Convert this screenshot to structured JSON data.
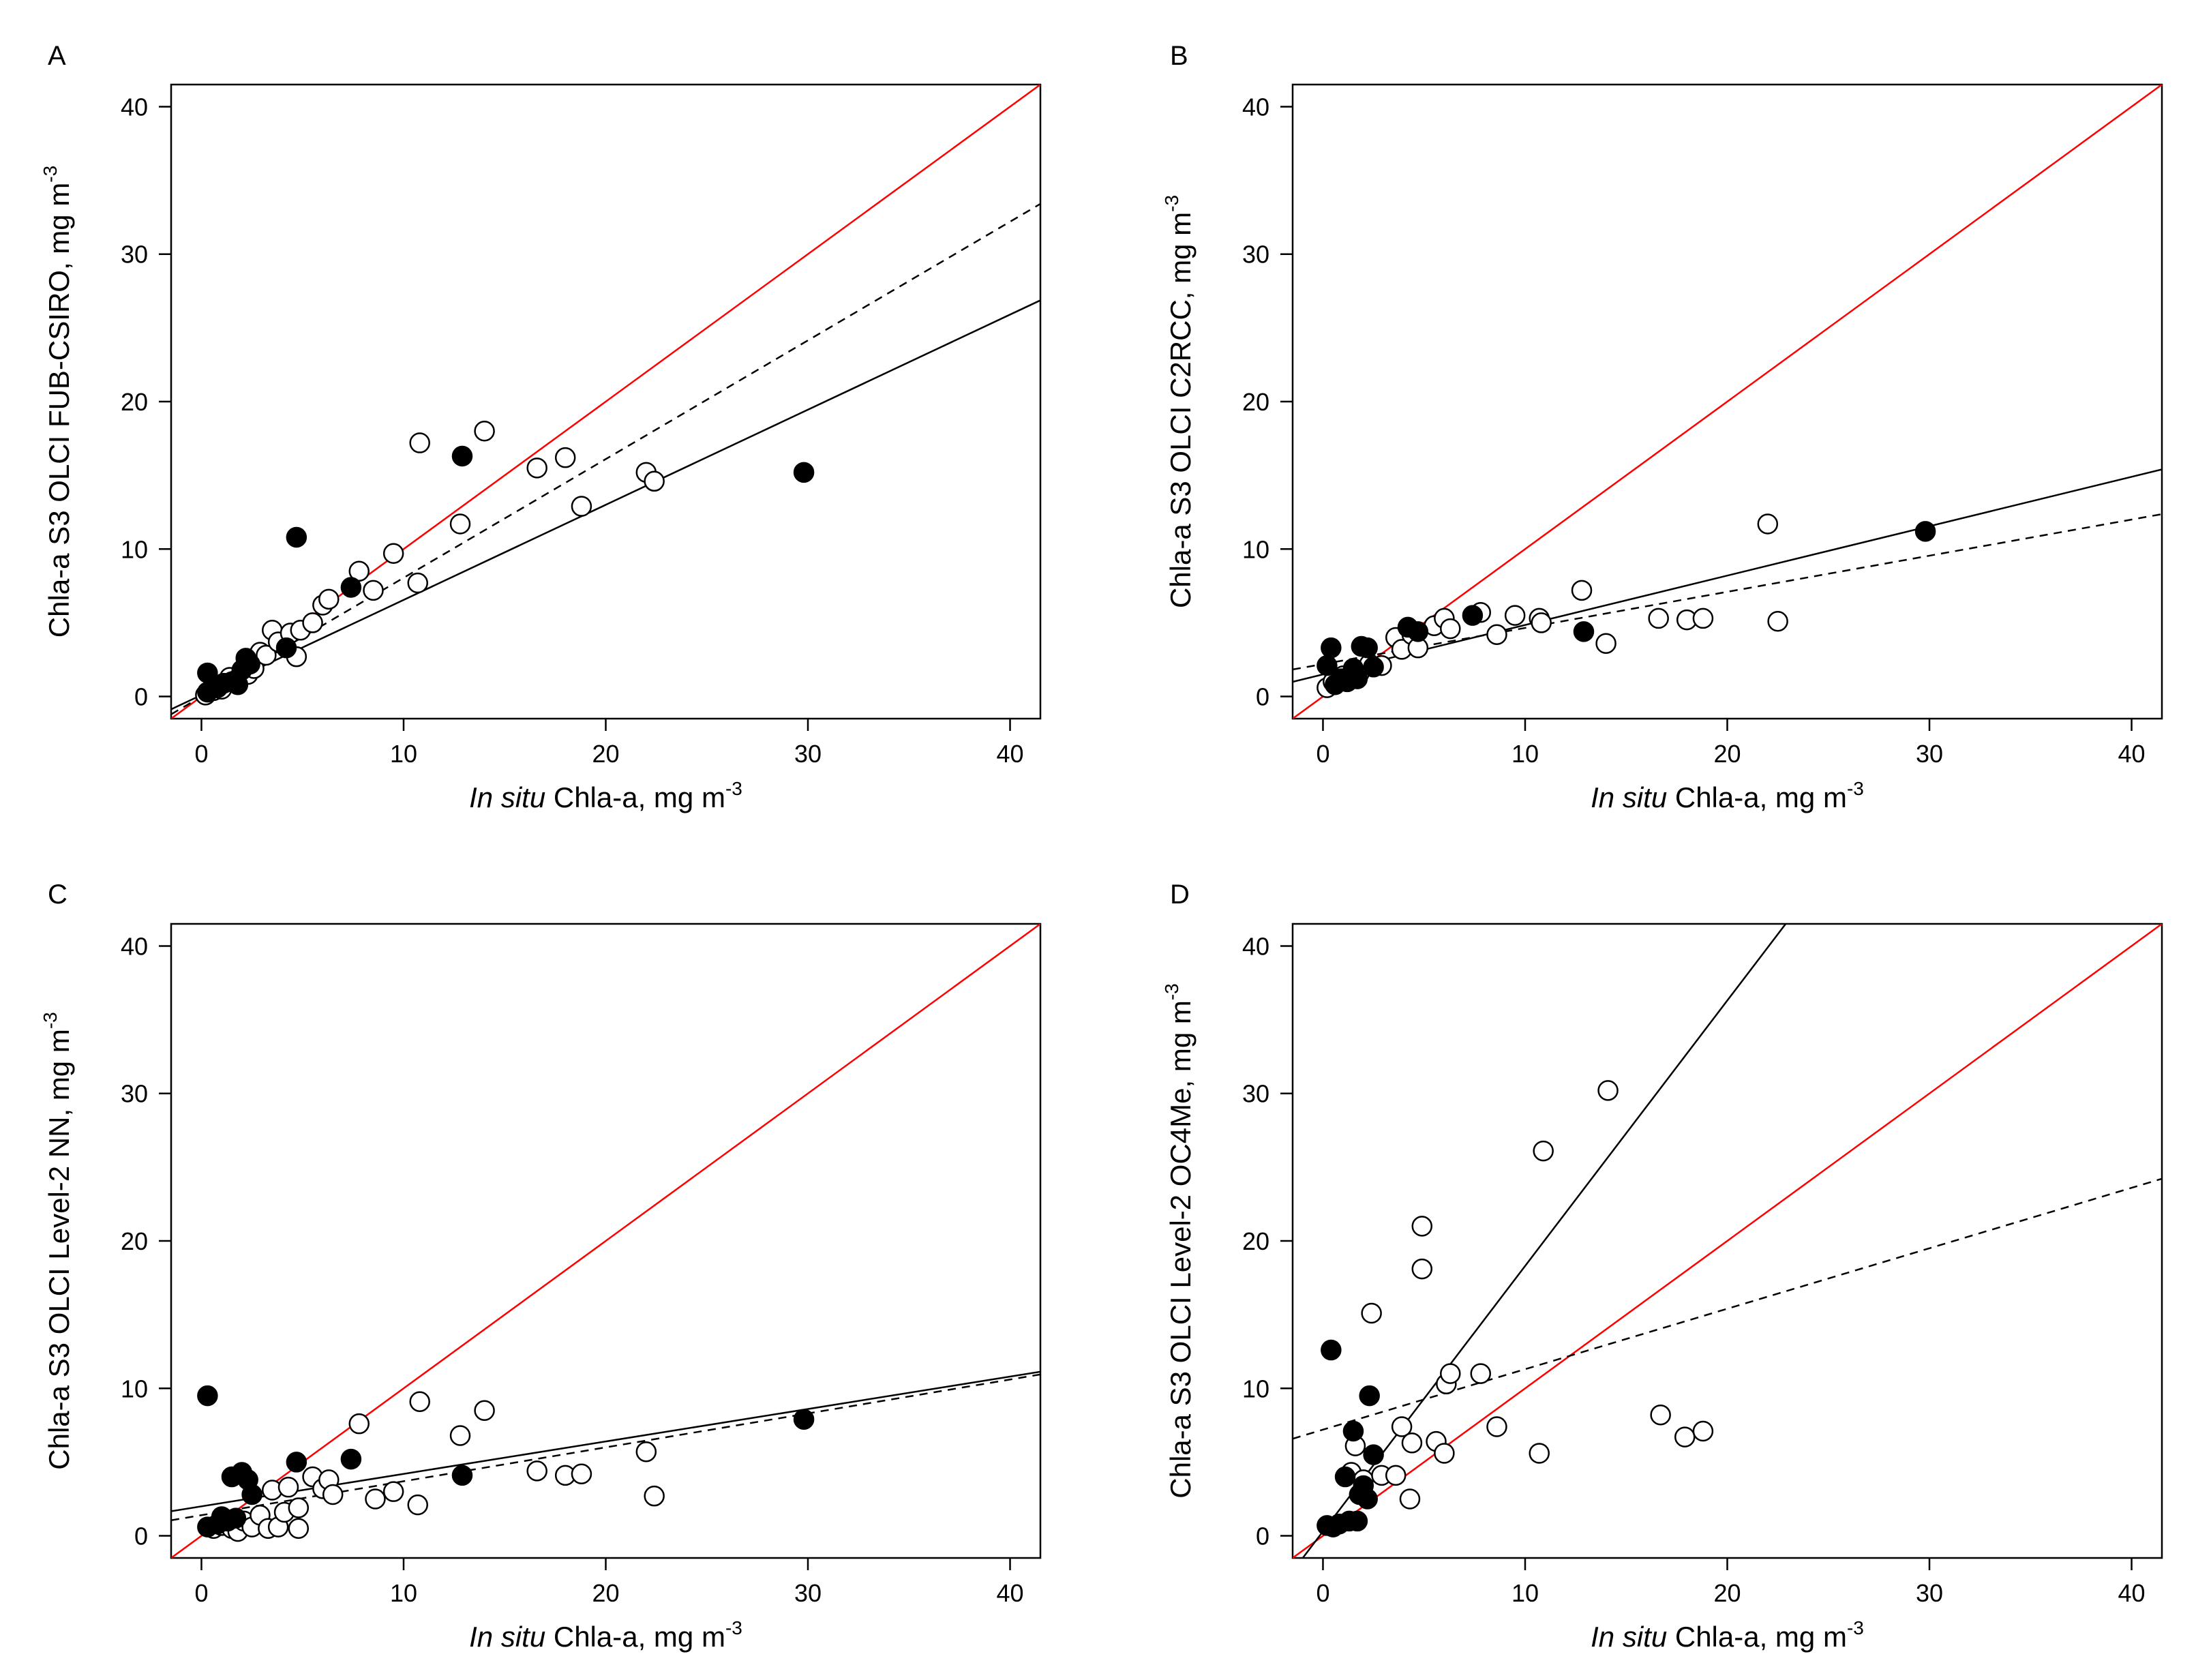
{
  "colors": {
    "identity_line": "#ff0000",
    "fit_line": "#000000",
    "background": "#ffffff"
  },
  "chart_data": [
    {
      "panel_label": "A",
      "type": "scatter",
      "ylabel": "Chla-a S3 OLCI FUB-CSIRO, mg m",
      "ylabel_sup": "-3",
      "xlabel_italic": "In situ",
      "xlabel_rest": " Chla-a, mg m",
      "xlabel_sup": "-3",
      "xlim": [
        -1.5,
        41.5
      ],
      "ylim": [
        -1.5,
        41.5
      ],
      "x_ticks": [
        0,
        10,
        20,
        30,
        40
      ],
      "y_ticks": [
        0,
        10,
        20,
        30,
        40
      ],
      "x_tick_labels": [
        "0",
        "10",
        "20",
        "30",
        "40"
      ],
      "y_tick_labels": [
        "0",
        "10",
        "20",
        "30",
        "40"
      ],
      "lines": {
        "identity": {
          "intercept": 0,
          "slope": 1
        },
        "solid_fit": {
          "intercept": 0.1,
          "slope": 0.645
        },
        "dashed_fit": {
          "intercept": 0,
          "slope": 0.805
        }
      },
      "filled_points": [
        [
          0.3,
          1.6
        ],
        [
          0.3,
          0.3
        ],
        [
          0.8,
          0.6
        ],
        [
          1.1,
          0.9
        ],
        [
          1.5,
          1.0
        ],
        [
          1.8,
          0.8
        ],
        [
          2.0,
          1.8
        ],
        [
          2.2,
          2.6
        ],
        [
          2.4,
          2.2
        ],
        [
          4.2,
          3.3
        ],
        [
          4.7,
          10.8
        ],
        [
          7.4,
          7.4
        ],
        [
          12.9,
          16.3
        ],
        [
          29.8,
          15.2
        ]
      ],
      "open_points": [
        [
          0.2,
          0.1
        ],
        [
          0.6,
          0.4
        ],
        [
          1.0,
          0.5
        ],
        [
          1.4,
          1.3
        ],
        [
          1.7,
          1.1
        ],
        [
          2.3,
          1.5
        ],
        [
          2.6,
          1.9
        ],
        [
          2.9,
          3.0
        ],
        [
          3.2,
          2.8
        ],
        [
          3.5,
          4.5
        ],
        [
          3.8,
          3.7
        ],
        [
          4.4,
          4.3
        ],
        [
          4.7,
          2.7
        ],
        [
          4.9,
          4.5
        ],
        [
          5.5,
          5.0
        ],
        [
          6.0,
          6.2
        ],
        [
          6.3,
          6.6
        ],
        [
          7.8,
          8.5
        ],
        [
          8.5,
          7.2
        ],
        [
          9.5,
          9.7
        ],
        [
          10.7,
          7.7
        ],
        [
          10.8,
          17.2
        ],
        [
          12.8,
          11.7
        ],
        [
          14.0,
          18.0
        ],
        [
          16.6,
          15.5
        ],
        [
          18.0,
          16.2
        ],
        [
          18.8,
          12.9
        ],
        [
          22.0,
          15.2
        ],
        [
          22.4,
          14.6
        ]
      ]
    },
    {
      "panel_label": "B",
      "type": "scatter",
      "ylabel": "Chla-a S3 OLCI C2RCC, mg m",
      "ylabel_sup": "-3",
      "xlabel_italic": "In situ",
      "xlabel_rest": " Chla-a, mg m",
      "xlabel_sup": "-3",
      "xlim": [
        -1.5,
        41.5
      ],
      "ylim": [
        -1.5,
        41.5
      ],
      "x_ticks": [
        0,
        10,
        20,
        30,
        40
      ],
      "y_ticks": [
        0,
        10,
        20,
        30,
        40
      ],
      "x_tick_labels": [
        "0",
        "10",
        "20",
        "30",
        "40"
      ],
      "y_tick_labels": [
        "0",
        "10",
        "20",
        "30",
        "40"
      ],
      "lines": {
        "identity": {
          "intercept": 0,
          "slope": 1
        },
        "solid_fit": {
          "intercept": 1.5,
          "slope": 0.335
        },
        "dashed_fit": {
          "intercept": 2.2,
          "slope": 0.245
        }
      },
      "filled_points": [
        [
          0.2,
          2.1
        ],
        [
          0.4,
          3.3
        ],
        [
          0.6,
          0.8
        ],
        [
          0.9,
          1.2
        ],
        [
          1.2,
          1.0
        ],
        [
          1.5,
          1.9
        ],
        [
          1.7,
          1.2
        ],
        [
          1.9,
          3.4
        ],
        [
          2.2,
          3.3
        ],
        [
          2.5,
          2.0
        ],
        [
          4.2,
          4.7
        ],
        [
          4.7,
          4.4
        ],
        [
          7.4,
          5.5
        ],
        [
          12.9,
          4.4
        ],
        [
          29.8,
          11.2
        ]
      ],
      "open_points": [
        [
          0.2,
          0.6
        ],
        [
          0.5,
          1.0
        ],
        [
          1.0,
          1.4
        ],
        [
          1.4,
          1.5
        ],
        [
          1.8,
          1.6
        ],
        [
          2.3,
          2.2
        ],
        [
          2.9,
          2.1
        ],
        [
          3.6,
          4.0
        ],
        [
          3.9,
          3.2
        ],
        [
          4.4,
          4.2
        ],
        [
          4.7,
          3.3
        ],
        [
          5.5,
          4.8
        ],
        [
          6.0,
          5.3
        ],
        [
          6.3,
          4.6
        ],
        [
          7.8,
          5.7
        ],
        [
          8.6,
          4.2
        ],
        [
          9.5,
          5.5
        ],
        [
          10.7,
          5.3
        ],
        [
          10.8,
          5.0
        ],
        [
          12.8,
          7.2
        ],
        [
          14.0,
          3.6
        ],
        [
          16.6,
          5.3
        ],
        [
          18.0,
          5.2
        ],
        [
          18.8,
          5.3
        ],
        [
          22.0,
          11.7
        ],
        [
          22.5,
          5.1
        ]
      ]
    },
    {
      "panel_label": "C",
      "type": "scatter",
      "ylabel": "Chla-a S3 OLCI Level-2 NN, mg m",
      "ylabel_sup": "-3",
      "xlabel_italic": "In situ",
      "xlabel_rest": " Chla-a, mg m",
      "xlabel_sup": "-3",
      "xlim": [
        -1.5,
        41.5
      ],
      "ylim": [
        -1.5,
        41.5
      ],
      "x_ticks": [
        0,
        10,
        20,
        30,
        40
      ],
      "y_ticks": [
        0,
        10,
        20,
        30,
        40
      ],
      "x_tick_labels": [
        "0",
        "10",
        "20",
        "30",
        "40"
      ],
      "y_tick_labels": [
        "0",
        "10",
        "20",
        "30",
        "40"
      ],
      "lines": {
        "identity": {
          "intercept": 0,
          "slope": 1
        },
        "solid_fit": {
          "intercept": 2.0,
          "slope": 0.22
        },
        "dashed_fit": {
          "intercept": 1.4,
          "slope": 0.23
        }
      },
      "filled_points": [
        [
          0.3,
          9.5
        ],
        [
          0.3,
          0.6
        ],
        [
          0.8,
          0.8
        ],
        [
          1.0,
          1.3
        ],
        [
          1.3,
          1.0
        ],
        [
          1.5,
          4.0
        ],
        [
          1.7,
          1.2
        ],
        [
          2.0,
          4.3
        ],
        [
          2.3,
          3.8
        ],
        [
          2.5,
          2.8
        ],
        [
          4.7,
          5.0
        ],
        [
          7.4,
          5.2
        ],
        [
          12.9,
          4.1
        ],
        [
          29.8,
          7.9
        ]
      ],
      "open_points": [
        [
          0.6,
          0.5
        ],
        [
          1.0,
          0.7
        ],
        [
          1.5,
          0.5
        ],
        [
          1.8,
          0.3
        ],
        [
          2.1,
          1.0
        ],
        [
          2.5,
          0.6
        ],
        [
          2.9,
          1.4
        ],
        [
          3.3,
          0.5
        ],
        [
          3.5,
          3.1
        ],
        [
          3.8,
          0.6
        ],
        [
          4.1,
          1.6
        ],
        [
          4.3,
          3.3
        ],
        [
          4.8,
          1.9
        ],
        [
          4.8,
          0.5
        ],
        [
          5.5,
          4.0
        ],
        [
          6.0,
          3.2
        ],
        [
          6.3,
          3.8
        ],
        [
          6.5,
          2.8
        ],
        [
          7.8,
          7.6
        ],
        [
          8.6,
          2.5
        ],
        [
          9.5,
          3.0
        ],
        [
          10.7,
          2.1
        ],
        [
          10.8,
          9.1
        ],
        [
          12.8,
          6.8
        ],
        [
          14.0,
          8.5
        ],
        [
          16.6,
          4.4
        ],
        [
          18.0,
          4.1
        ],
        [
          18.8,
          4.2
        ],
        [
          22.0,
          5.7
        ],
        [
          22.4,
          2.7
        ]
      ]
    },
    {
      "panel_label": "D",
      "type": "scatter",
      "ylabel": "Chla-a S3 OLCI Level-2 OC4Me, mg m",
      "ylabel_sup": "-3",
      "xlabel_italic": "In situ",
      "xlabel_rest": " Chla-a, mg m",
      "xlabel_sup": "-3",
      "xlim": [
        -1.5,
        41.5
      ],
      "ylim": [
        -1.5,
        41.5
      ],
      "x_ticks": [
        0,
        10,
        20,
        30,
        40
      ],
      "y_ticks": [
        0,
        10,
        20,
        30,
        40
      ],
      "x_tick_labels": [
        "0",
        "10",
        "20",
        "30",
        "40"
      ],
      "y_tick_labels": [
        "0",
        "10",
        "20",
        "30",
        "40"
      ],
      "lines": {
        "identity": {
          "intercept": 0,
          "slope": 1
        },
        "solid_fit": {
          "intercept": 0.3,
          "slope": 1.8
        },
        "dashed_fit": {
          "intercept": 7.2,
          "slope": 0.41
        }
      },
      "filled_points": [
        [
          0.2,
          0.7
        ],
        [
          0.4,
          12.6
        ],
        [
          0.5,
          0.6
        ],
        [
          0.8,
          0.8
        ],
        [
          1.1,
          4.0
        ],
        [
          1.3,
          1.0
        ],
        [
          1.5,
          7.1
        ],
        [
          1.7,
          1.0
        ],
        [
          1.8,
          2.8
        ],
        [
          2.0,
          3.4
        ],
        [
          2.2,
          2.5
        ],
        [
          2.3,
          9.5
        ],
        [
          2.5,
          5.5
        ]
      ],
      "open_points": [
        [
          1.4,
          4.3
        ],
        [
          1.6,
          6.1
        ],
        [
          2.0,
          3.8
        ],
        [
          2.4,
          15.1
        ],
        [
          2.9,
          4.1
        ],
        [
          3.6,
          4.1
        ],
        [
          3.9,
          7.4
        ],
        [
          4.3,
          2.5
        ],
        [
          4.4,
          6.3
        ],
        [
          4.9,
          21.0
        ],
        [
          4.9,
          18.1
        ],
        [
          5.6,
          6.4
        ],
        [
          6.0,
          5.6
        ],
        [
          6.1,
          10.3
        ],
        [
          6.3,
          11.0
        ],
        [
          7.8,
          11.0
        ],
        [
          8.6,
          7.4
        ],
        [
          10.7,
          5.6
        ],
        [
          10.9,
          26.1
        ],
        [
          14.1,
          30.2
        ],
        [
          16.7,
          8.2
        ],
        [
          17.9,
          6.7
        ],
        [
          18.8,
          7.1
        ]
      ]
    }
  ]
}
